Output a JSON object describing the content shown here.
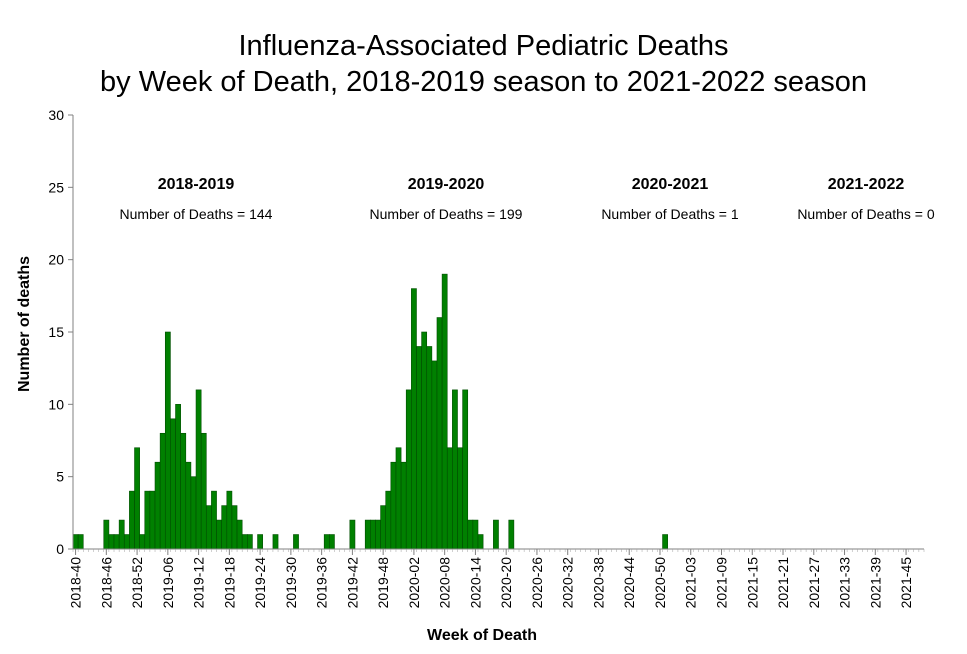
{
  "chart_data": {
    "type": "bar",
    "title_line1": "Influenza-Associated Pediatric Deaths",
    "title_line2": "by Week of Death, 2018-2019 season to 2021-2022 season",
    "xlabel": "Week of Death",
    "ylabel": "Number of deaths",
    "ylim": [
      0,
      30
    ],
    "yticks": [
      0,
      5,
      10,
      15,
      20,
      25,
      30
    ],
    "grid": false,
    "bar_color": "#008000",
    "bar_edge_color": "#004d00",
    "x_tick_labels": [
      "2018-40",
      "2018-46",
      "2018-52",
      "2019-06",
      "2019-12",
      "2019-18",
      "2019-24",
      "2019-30",
      "2019-36",
      "2019-42",
      "2019-48",
      "2020-02",
      "2020-08",
      "2020-14",
      "2020-20",
      "2020-26",
      "2020-32",
      "2020-38",
      "2020-44",
      "2020-50",
      "2021-03",
      "2021-09",
      "2021-15",
      "2021-21",
      "2021-27",
      "2021-33",
      "2021-39",
      "2021-45"
    ],
    "weeks_per_tick": 6,
    "total_weeks": 166,
    "start_week": "2018-40",
    "values": [
      1,
      1,
      0,
      0,
      0,
      0,
      2,
      1,
      1,
      2,
      1,
      4,
      7,
      1,
      4,
      4,
      6,
      8,
      15,
      9,
      10,
      8,
      6,
      5,
      11,
      8,
      3,
      4,
      2,
      3,
      4,
      3,
      2,
      1,
      1,
      0,
      1,
      0,
      0,
      1,
      0,
      0,
      0,
      1,
      0,
      0,
      0,
      0,
      0,
      1,
      1,
      0,
      0,
      0,
      2,
      0,
      0,
      2,
      2,
      2,
      3,
      4,
      6,
      7,
      6,
      11,
      18,
      14,
      15,
      14,
      13,
      16,
      19,
      7,
      11,
      7,
      11,
      2,
      2,
      1,
      0,
      0,
      2,
      0,
      0,
      2,
      0,
      0,
      0,
      0,
      0,
      0,
      0,
      0,
      0,
      0,
      0,
      0,
      0,
      0,
      0,
      0,
      0,
      0,
      0,
      0,
      0,
      0,
      0,
      0,
      0,
      0,
      0,
      0,
      0,
      1,
      0,
      0,
      0,
      0,
      0,
      0,
      0,
      0,
      0,
      0,
      0,
      0,
      0,
      0,
      0,
      0,
      0,
      0,
      0,
      0,
      0,
      0,
      0,
      0,
      0,
      0,
      0,
      0,
      0,
      0,
      0,
      0,
      0,
      0,
      0,
      0,
      0,
      0,
      0,
      0,
      0,
      0,
      0,
      0,
      0,
      0,
      0,
      0,
      0,
      0
    ],
    "seasons": [
      {
        "name": "2018-2019",
        "label": "Number of Deaths = 144"
      },
      {
        "name": "2019-2020",
        "label": "Number of Deaths = 199"
      },
      {
        "name": "2020-2021",
        "label": "Number of Deaths = 1"
      },
      {
        "name": "2021-2022",
        "label": "Number of Deaths = 0"
      }
    ]
  }
}
